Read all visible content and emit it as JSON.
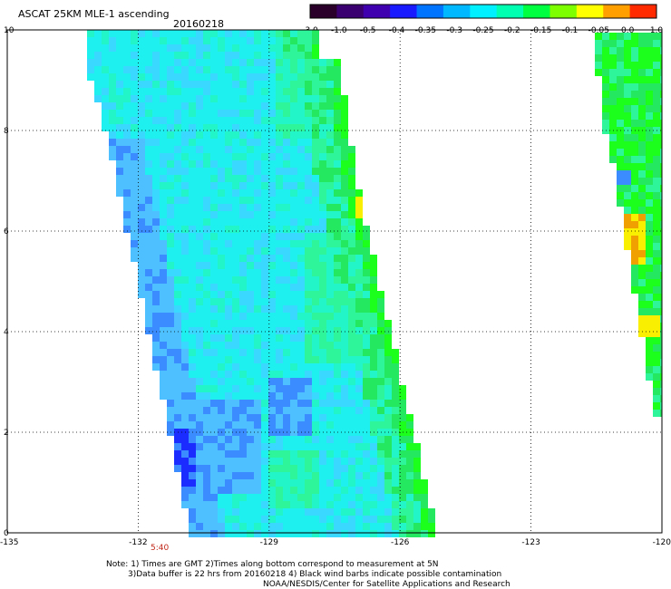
{
  "header": {
    "title": "ASCAT 25KM MLE-1 ascending",
    "date": "20160218"
  },
  "colorbar": {
    "labels": [
      "-3.0",
      "-1.0",
      "-0.5",
      "-0.4",
      "-0.35",
      "-0.3",
      "-0.25",
      "-0.2",
      "-0.15",
      "-0.1",
      "-0.05",
      "0.0",
      "1.0"
    ],
    "colors": [
      "#2a002a",
      "#3a0070",
      "#3f00b0",
      "#1a1aff",
      "#0073ff",
      "#00b8ff",
      "#00f0ff",
      "#00ffb0",
      "#00ff40",
      "#7dff00",
      "#ffff00",
      "#ffa000",
      "#ff2a00"
    ]
  },
  "map": {
    "x_labels": [
      "-135",
      "-132",
      "-129",
      "-126",
      "-123",
      "-120"
    ],
    "y_labels": [
      "0",
      "2",
      "4",
      "6",
      "8",
      "10"
    ],
    "time_label": "5:40",
    "lon_range": [
      -135,
      -120
    ],
    "lat_range": [
      0,
      10
    ]
  },
  "notes": {
    "line1": "Note: 1) Times are GMT 2)Times along bottom correspond to measurement at 5N",
    "line2": "3)Data buffer is 22 hrs from 20160218 4) Black wind barbs indicate possible contamination",
    "line3": "NOAA/NESDIS/Center for Satellite Applications and Research"
  },
  "palette": {
    "deep_blue": "#1a2cff",
    "blue": "#3a8cff",
    "light_blue": "#4fc0ff",
    "sky": "#3ad8ff",
    "cyan": "#1ef0f0",
    "aqua": "#22f5c8",
    "mint": "#2ef59a",
    "green": "#24e860",
    "bright_green": "#1cff1c",
    "yellow_green": "#b4f000",
    "yellow": "#f8f000",
    "orange": "#f0a000"
  }
}
